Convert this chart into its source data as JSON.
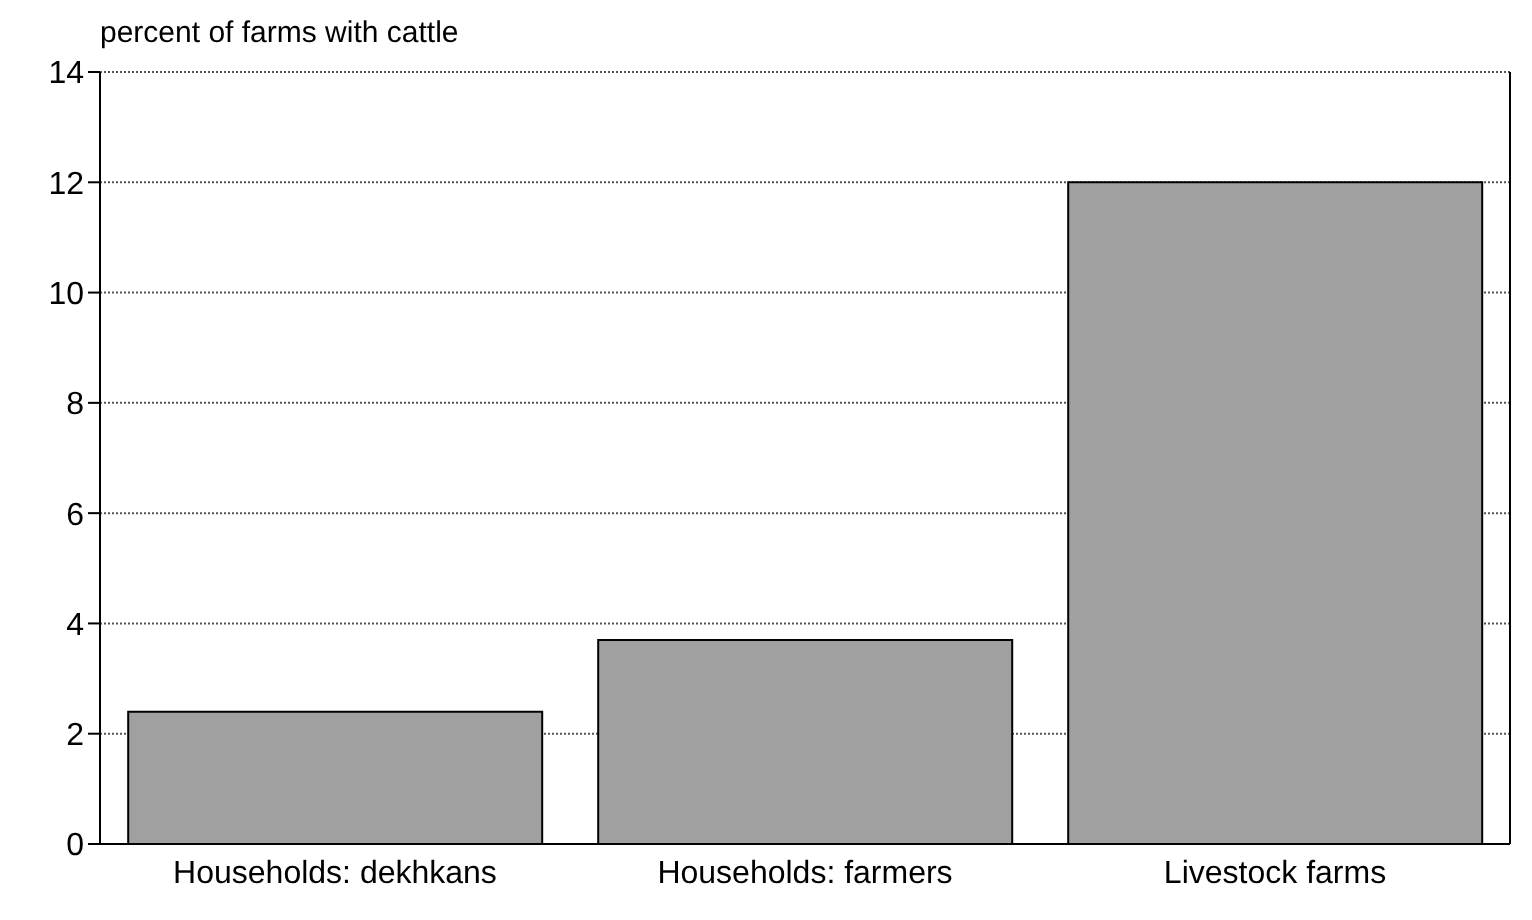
{
  "chart_data": {
    "type": "bar",
    "ylabel": "percent of farms with cattle",
    "categories": [
      "Households: dekhkans",
      "Households: farmers",
      "Livestock farms"
    ],
    "values": [
      2.4,
      3.7,
      12.0
    ],
    "color": "#a0a0a0",
    "ylim": [
      0,
      14
    ],
    "yticks": [
      0,
      2,
      4,
      6,
      8,
      10,
      12,
      14
    ],
    "grid": "y"
  }
}
